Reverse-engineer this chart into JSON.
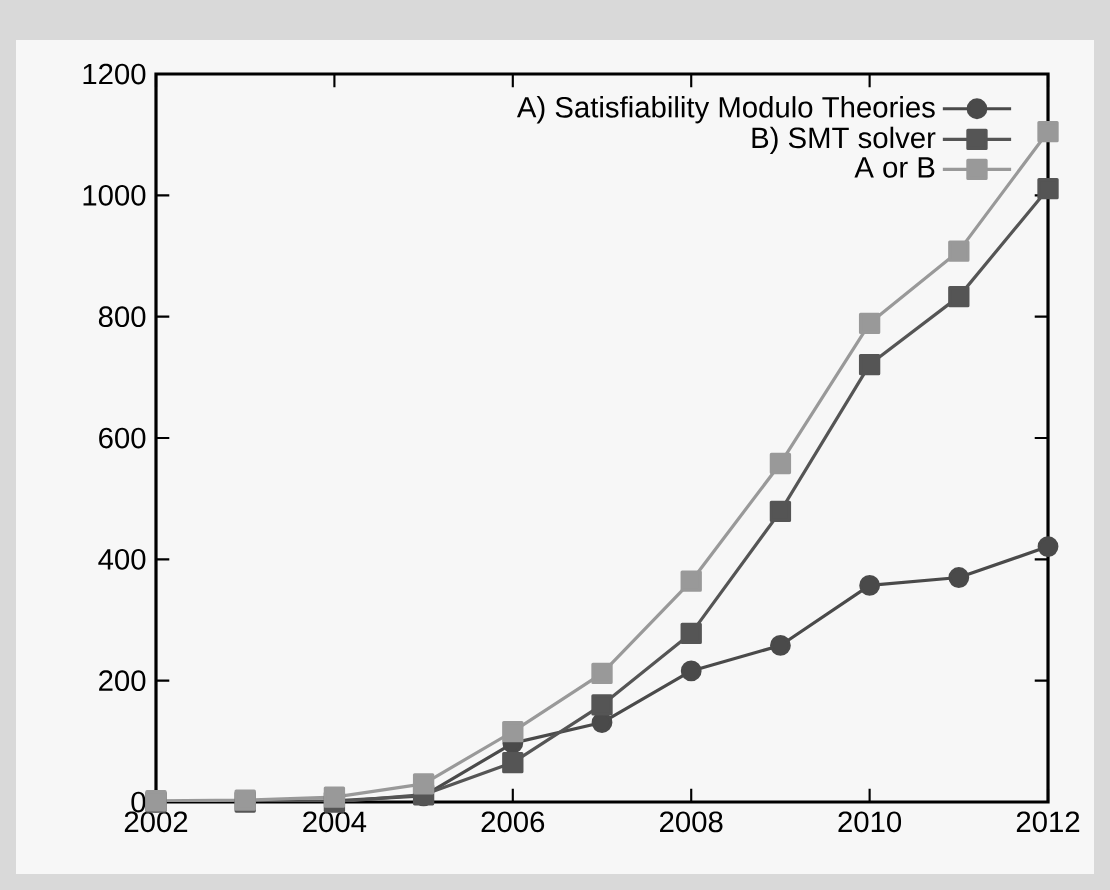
{
  "chart_data": {
    "type": "line",
    "x": [
      2002,
      2003,
      2004,
      2005,
      2006,
      2007,
      2008,
      2009,
      2010,
      2011,
      2012
    ],
    "series": [
      {
        "name": "A) Satisfiability Modulo Theories",
        "color": "#4a4a4a",
        "marker": "circle",
        "values": [
          0,
          1,
          2,
          10,
          97,
          131,
          216,
          258,
          357,
          370,
          421
        ]
      },
      {
        "name": "B) SMT solver",
        "color": "#555555",
        "marker": "square",
        "values": [
          0,
          0,
          0,
          12,
          65,
          160,
          278,
          479,
          721,
          833,
          1011
        ]
      },
      {
        "name": "A or B",
        "color": "#999999",
        "marker": "square",
        "values": [
          2,
          3,
          8,
          30,
          116,
          212,
          364,
          558,
          789,
          908,
          1105
        ]
      }
    ],
    "xlim": [
      2002,
      2012
    ],
    "xticks": [
      2002,
      2004,
      2006,
      2008,
      2010,
      2012
    ],
    "ylim": [
      0,
      1200
    ],
    "yticks": [
      0,
      200,
      400,
      600,
      800,
      1000,
      1200
    ],
    "grid": false,
    "legend": "top right",
    "line_style": "solid"
  }
}
